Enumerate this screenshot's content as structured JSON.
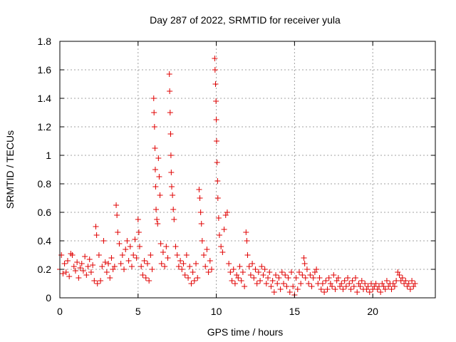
{
  "chart_data": {
    "type": "scatter",
    "title": "Day 287 of 2022, SRMTID for receiver yula",
    "xlabel": "GPS time / hours",
    "ylabel": "SRMTID / TECUs",
    "xlim": [
      0,
      24
    ],
    "ylim": [
      0,
      1.8
    ],
    "xticks": [
      0,
      5,
      10,
      15,
      20
    ],
    "yticks": [
      0,
      0.2,
      0.4,
      0.6,
      0.8,
      1,
      1.2,
      1.4,
      1.6,
      1.8
    ],
    "ytick_labels": [
      "0",
      "0.2",
      "0.4",
      "0.6",
      "0.8",
      "1",
      "1.2",
      "1.4",
      "1.6",
      "1.8"
    ],
    "grid": true,
    "marker": "+",
    "color": "#e00000",
    "series": [
      {
        "name": "yula",
        "points": [
          [
            0.0,
            0.2
          ],
          [
            0.1,
            0.3
          ],
          [
            0.2,
            0.17
          ],
          [
            0.3,
            0.24
          ],
          [
            0.4,
            0.18
          ],
          [
            0.5,
            0.26
          ],
          [
            0.6,
            0.15
          ],
          [
            0.7,
            0.31
          ],
          [
            0.8,
            0.3
          ],
          [
            0.9,
            0.22
          ],
          [
            1.0,
            0.19
          ],
          [
            1.1,
            0.25
          ],
          [
            1.2,
            0.14
          ],
          [
            1.3,
            0.21
          ],
          [
            1.4,
            0.24
          ],
          [
            1.5,
            0.19
          ],
          [
            1.6,
            0.29
          ],
          [
            1.7,
            0.16
          ],
          [
            1.8,
            0.22
          ],
          [
            1.9,
            0.27
          ],
          [
            2.0,
            0.18
          ],
          [
            2.1,
            0.23
          ],
          [
            2.2,
            0.12
          ],
          [
            2.3,
            0.5
          ],
          [
            2.35,
            0.44
          ],
          [
            2.4,
            0.1
          ],
          [
            2.5,
            0.3
          ],
          [
            2.6,
            0.12
          ],
          [
            2.7,
            0.22
          ],
          [
            2.8,
            0.4
          ],
          [
            2.9,
            0.25
          ],
          [
            3.0,
            0.18
          ],
          [
            3.1,
            0.24
          ],
          [
            3.2,
            0.14
          ],
          [
            3.3,
            0.28
          ],
          [
            3.4,
            0.2
          ],
          [
            3.5,
            0.22
          ],
          [
            3.6,
            0.65
          ],
          [
            3.65,
            0.58
          ],
          [
            3.7,
            0.46
          ],
          [
            3.8,
            0.38
          ],
          [
            3.9,
            0.24
          ],
          [
            4.0,
            0.3
          ],
          [
            4.1,
            0.2
          ],
          [
            4.2,
            0.34
          ],
          [
            4.3,
            0.4
          ],
          [
            4.4,
            0.26
          ],
          [
            4.5,
            0.36
          ],
          [
            4.6,
            0.22
          ],
          [
            4.7,
            0.3
          ],
          [
            4.8,
            0.41
          ],
          [
            4.9,
            0.28
          ],
          [
            5.0,
            0.55
          ],
          [
            5.05,
            0.46
          ],
          [
            5.1,
            0.36
          ],
          [
            5.2,
            0.22
          ],
          [
            5.3,
            0.16
          ],
          [
            5.4,
            0.26
          ],
          [
            5.5,
            0.14
          ],
          [
            5.6,
            0.24
          ],
          [
            5.7,
            0.12
          ],
          [
            5.8,
            0.3
          ],
          [
            5.9,
            0.2
          ],
          [
            6.0,
            1.4
          ],
          [
            6.02,
            1.3
          ],
          [
            6.05,
            1.2
          ],
          [
            6.08,
            1.05
          ],
          [
            6.1,
            0.9
          ],
          [
            6.12,
            0.78
          ],
          [
            6.15,
            0.62
          ],
          [
            6.2,
            0.55
          ],
          [
            6.25,
            0.52
          ],
          [
            6.3,
            0.98
          ],
          [
            6.35,
            0.85
          ],
          [
            6.4,
            0.72
          ],
          [
            6.45,
            0.38
          ],
          [
            6.5,
            0.24
          ],
          [
            6.6,
            0.32
          ],
          [
            6.7,
            0.22
          ],
          [
            6.8,
            0.36
          ],
          [
            6.9,
            0.28
          ],
          [
            7.0,
            1.57
          ],
          [
            7.02,
            1.45
          ],
          [
            7.05,
            1.3
          ],
          [
            7.08,
            1.15
          ],
          [
            7.1,
            1.0
          ],
          [
            7.12,
            0.88
          ],
          [
            7.15,
            0.78
          ],
          [
            7.2,
            0.72
          ],
          [
            7.25,
            0.62
          ],
          [
            7.3,
            0.55
          ],
          [
            7.4,
            0.36
          ],
          [
            7.5,
            0.3
          ],
          [
            7.6,
            0.22
          ],
          [
            7.7,
            0.26
          ],
          [
            7.8,
            0.2
          ],
          [
            7.9,
            0.24
          ],
          [
            8.0,
            0.16
          ],
          [
            8.1,
            0.3
          ],
          [
            8.2,
            0.14
          ],
          [
            8.3,
            0.22
          ],
          [
            8.4,
            0.1
          ],
          [
            8.5,
            0.18
          ],
          [
            8.6,
            0.12
          ],
          [
            8.7,
            0.24
          ],
          [
            8.8,
            0.14
          ],
          [
            8.9,
            0.76
          ],
          [
            8.95,
            0.7
          ],
          [
            9.0,
            0.6
          ],
          [
            9.05,
            0.52
          ],
          [
            9.1,
            0.4
          ],
          [
            9.2,
            0.3
          ],
          [
            9.3,
            0.22
          ],
          [
            9.4,
            0.34
          ],
          [
            9.5,
            0.18
          ],
          [
            9.6,
            0.26
          ],
          [
            9.7,
            0.2
          ],
          [
            9.9,
            1.68
          ],
          [
            9.92,
            1.6
          ],
          [
            9.95,
            1.5
          ],
          [
            9.98,
            1.38
          ],
          [
            10.0,
            1.25
          ],
          [
            10.02,
            1.1
          ],
          [
            10.05,
            0.95
          ],
          [
            10.08,
            0.82
          ],
          [
            10.1,
            0.7
          ],
          [
            10.15,
            0.56
          ],
          [
            10.2,
            0.44
          ],
          [
            10.3,
            0.36
          ],
          [
            10.4,
            0.32
          ],
          [
            10.5,
            0.48
          ],
          [
            10.6,
            0.58
          ],
          [
            10.7,
            0.6
          ],
          [
            10.8,
            0.24
          ],
          [
            10.9,
            0.18
          ],
          [
            11.0,
            0.12
          ],
          [
            11.1,
            0.2
          ],
          [
            11.2,
            0.1
          ],
          [
            11.3,
            0.16
          ],
          [
            11.4,
            0.14
          ],
          [
            11.5,
            0.22
          ],
          [
            11.6,
            0.12
          ],
          [
            11.7,
            0.18
          ],
          [
            11.8,
            0.08
          ],
          [
            11.9,
            0.46
          ],
          [
            11.95,
            0.4
          ],
          [
            12.0,
            0.3
          ],
          [
            12.1,
            0.22
          ],
          [
            12.2,
            0.16
          ],
          [
            12.3,
            0.24
          ],
          [
            12.4,
            0.14
          ],
          [
            12.5,
            0.2
          ],
          [
            12.6,
            0.1
          ],
          [
            12.7,
            0.18
          ],
          [
            12.8,
            0.12
          ],
          [
            12.9,
            0.22
          ],
          [
            13.0,
            0.16
          ],
          [
            13.1,
            0.2
          ],
          [
            13.2,
            0.1
          ],
          [
            13.3,
            0.14
          ],
          [
            13.4,
            0.18
          ],
          [
            13.5,
            0.08
          ],
          [
            13.6,
            0.12
          ],
          [
            13.7,
            0.04
          ],
          [
            13.8,
            0.16
          ],
          [
            13.9,
            0.1
          ],
          [
            14.0,
            0.14
          ],
          [
            14.1,
            0.06
          ],
          [
            14.2,
            0.18
          ],
          [
            14.3,
            0.1
          ],
          [
            14.4,
            0.16
          ],
          [
            14.5,
            0.08
          ],
          [
            14.6,
            0.14
          ],
          [
            14.7,
            0.04
          ],
          [
            14.8,
            0.18
          ],
          [
            14.9,
            0.08
          ],
          [
            15.0,
            0.02
          ],
          [
            15.1,
            0.14
          ],
          [
            15.2,
            0.06
          ],
          [
            15.3,
            0.18
          ],
          [
            15.4,
            0.1
          ],
          [
            15.5,
            0.16
          ],
          [
            15.6,
            0.28
          ],
          [
            15.65,
            0.24
          ],
          [
            15.7,
            0.14
          ],
          [
            15.8,
            0.2
          ],
          [
            15.9,
            0.1
          ],
          [
            16.0,
            0.16
          ],
          [
            16.1,
            0.08
          ],
          [
            16.2,
            0.14
          ],
          [
            16.3,
            0.18
          ],
          [
            16.4,
            0.2
          ],
          [
            16.5,
            0.1
          ],
          [
            16.6,
            0.14
          ],
          [
            16.7,
            0.06
          ],
          [
            16.8,
            0.1
          ],
          [
            16.9,
            0.04
          ],
          [
            17.0,
            0.12
          ],
          [
            17.1,
            0.06
          ],
          [
            17.2,
            0.14
          ],
          [
            17.3,
            0.1
          ],
          [
            17.4,
            0.08
          ],
          [
            17.5,
            0.16
          ],
          [
            17.6,
            0.06
          ],
          [
            17.7,
            0.12
          ],
          [
            17.8,
            0.14
          ],
          [
            17.9,
            0.08
          ],
          [
            18.0,
            0.1
          ],
          [
            18.1,
            0.06
          ],
          [
            18.2,
            0.12
          ],
          [
            18.3,
            0.08
          ],
          [
            18.4,
            0.14
          ],
          [
            18.5,
            0.1
          ],
          [
            18.6,
            0.06
          ],
          [
            18.7,
            0.12
          ],
          [
            18.8,
            0.08
          ],
          [
            18.9,
            0.14
          ],
          [
            19.0,
            0.04
          ],
          [
            19.1,
            0.1
          ],
          [
            19.2,
            0.08
          ],
          [
            19.3,
            0.12
          ],
          [
            19.4,
            0.06
          ],
          [
            19.5,
            0.1
          ],
          [
            19.6,
            0.06
          ],
          [
            19.7,
            0.08
          ],
          [
            19.8,
            0.04
          ],
          [
            19.9,
            0.1
          ],
          [
            20.0,
            0.06
          ],
          [
            20.1,
            0.08
          ],
          [
            20.2,
            0.1
          ],
          [
            20.3,
            0.06
          ],
          [
            20.4,
            0.08
          ],
          [
            20.5,
            0.04
          ],
          [
            20.6,
            0.1
          ],
          [
            20.7,
            0.08
          ],
          [
            20.8,
            0.06
          ],
          [
            20.9,
            0.12
          ],
          [
            21.0,
            0.08
          ],
          [
            21.1,
            0.1
          ],
          [
            21.2,
            0.06
          ],
          [
            21.3,
            0.1
          ],
          [
            21.4,
            0.08
          ],
          [
            21.5,
            0.12
          ],
          [
            21.6,
            0.18
          ],
          [
            21.7,
            0.16
          ],
          [
            21.8,
            0.12
          ],
          [
            21.9,
            0.14
          ],
          [
            22.0,
            0.1
          ],
          [
            22.1,
            0.12
          ],
          [
            22.2,
            0.08
          ],
          [
            22.3,
            0.1
          ],
          [
            22.4,
            0.06
          ],
          [
            22.5,
            0.12
          ],
          [
            22.6,
            0.08
          ],
          [
            22.7,
            0.1
          ]
        ]
      }
    ]
  }
}
